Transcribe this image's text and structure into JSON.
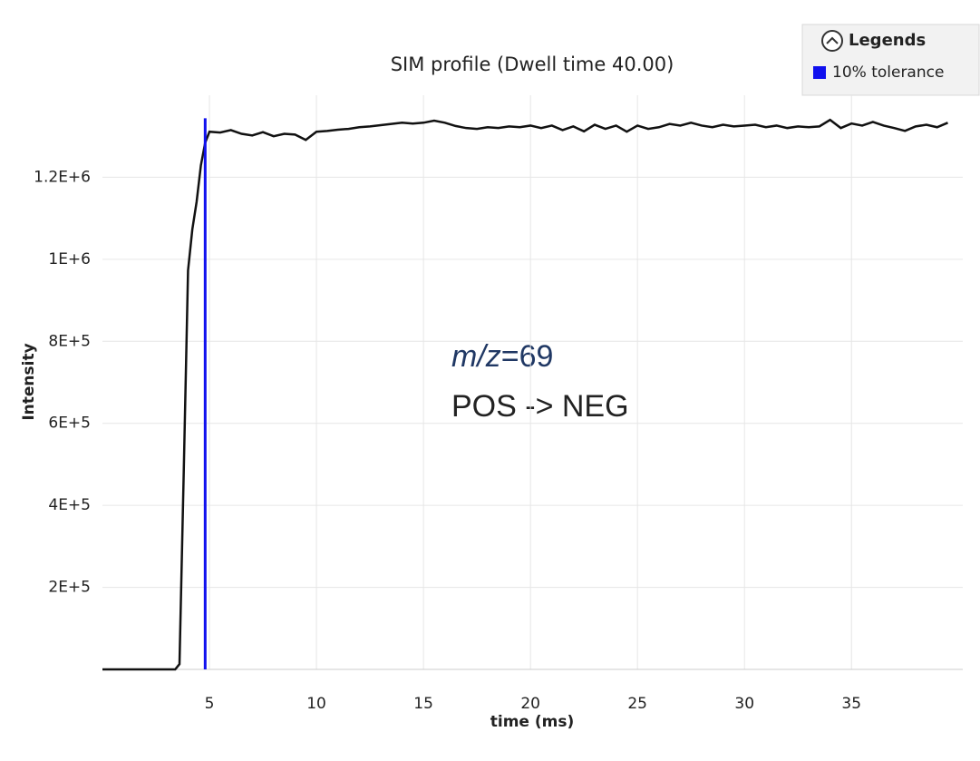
{
  "chart_data": {
    "type": "line",
    "title": "SIM profile (Dwell time 40.00)",
    "xlabel": "time (ms)",
    "ylabel": "Intensity",
    "legend_title": "Legends",
    "legend_position": "upper right",
    "annotations": [
      "m/z",
      "=69",
      "POS -> NEG"
    ],
    "xlim": [
      0,
      40.2
    ],
    "xticks": [
      5,
      10,
      15,
      20,
      25,
      30,
      35
    ],
    "ylim": [
      0,
      1400000
    ],
    "yticks": [
      {
        "value": 200000,
        "label": "2E+5"
      },
      {
        "value": 400000,
        "label": "4E+5"
      },
      {
        "value": 600000,
        "label": "6E+5"
      },
      {
        "value": 800000,
        "label": "8E+5"
      },
      {
        "value": 1000000,
        "label": "1E+6"
      },
      {
        "value": 1200000,
        "label": "1.2E+6"
      }
    ],
    "grid": true,
    "series": [
      {
        "color": "#111111",
        "x": [
          0,
          3.4,
          3.6,
          3.8,
          4.0,
          4.2,
          4.4,
          4.6,
          4.8,
          5.0,
          5.5,
          6.0,
          6.5,
          7.0,
          7.5,
          8.0,
          8.5,
          9.0,
          9.5,
          10.0,
          10.5,
          11,
          11.5,
          12,
          12.5,
          13,
          13.5,
          14,
          14.5,
          15,
          15.5,
          16,
          16.5,
          17,
          17.5,
          18,
          18.5,
          19,
          19.5,
          20,
          20.5,
          21,
          21.5,
          22,
          22.5,
          23,
          23.5,
          24,
          24.5,
          25,
          25.5,
          26,
          26.5,
          27,
          27.5,
          28,
          28.5,
          29,
          29.5,
          30,
          30.5,
          31,
          31.5,
          32,
          32.5,
          33,
          33.5,
          34,
          34.5,
          35,
          35.5,
          36,
          36.5,
          37,
          37.5,
          38,
          38.5,
          39,
          39.5
        ],
        "values": [
          0,
          0,
          13000,
          484000,
          973000,
          1073000,
          1140000,
          1229000,
          1284000,
          1311000,
          1309000,
          1315000,
          1306000,
          1302000,
          1310000,
          1300000,
          1306000,
          1304000,
          1291000,
          1311000,
          1313000,
          1316000,
          1318000,
          1322000,
          1324000,
          1327000,
          1330000,
          1333000,
          1331000,
          1333000,
          1338000,
          1333000,
          1325000,
          1320000,
          1318000,
          1322000,
          1320000,
          1324000,
          1322000,
          1326000,
          1320000,
          1326000,
          1315000,
          1324000,
          1312000,
          1328000,
          1318000,
          1326000,
          1311000,
          1326000,
          1318000,
          1322000,
          1330000,
          1326000,
          1333000,
          1326000,
          1322000,
          1328000,
          1324000,
          1326000,
          1328000,
          1322000,
          1326000,
          1320000,
          1324000,
          1322000,
          1324000,
          1340000,
          1320000,
          1331000,
          1326000,
          1335000,
          1326000,
          1320000,
          1313000,
          1324000,
          1328000,
          1322000,
          1333000
        ]
      },
      {
        "name": "10% tolerance",
        "color": "#1010ee",
        "x": [
          4.8,
          4.8
        ],
        "values": [
          0,
          1344000
        ]
      }
    ]
  }
}
